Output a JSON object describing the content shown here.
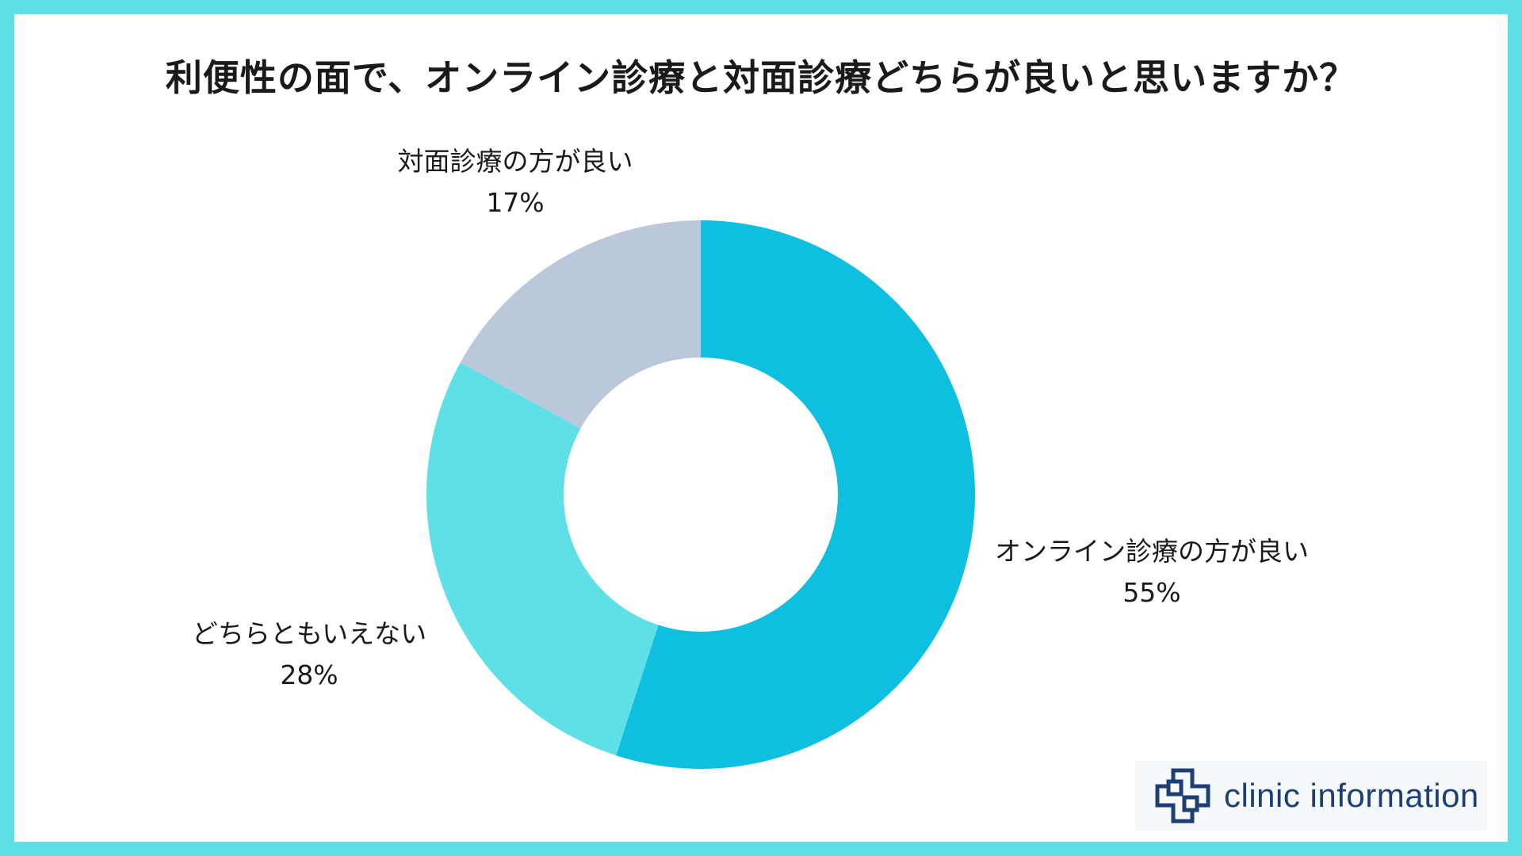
{
  "title": "利便性の面で、オンライン診療と対面診療どちらが良いと思いますか？",
  "chart_data": {
    "type": "pie",
    "variant": "donut",
    "legend": "none",
    "slices": [
      {
        "label": "オンライン診療の方が良い",
        "value": 55,
        "value_label": "55%",
        "color": "#0fbfdf"
      },
      {
        "label": "どちらともいえない",
        "value": 28,
        "value_label": "28%",
        "color": "#5ee0e6"
      },
      {
        "label": "対面診療の方が良い",
        "value": 17,
        "value_label": "17%",
        "color": "#bbc7da"
      }
    ]
  },
  "logo": {
    "text": "clinic information",
    "icon": "medical-cross-icon",
    "color": "#1e3f73"
  },
  "colors": {
    "frame": "#5ee0e6",
    "background": "#ffffff"
  }
}
